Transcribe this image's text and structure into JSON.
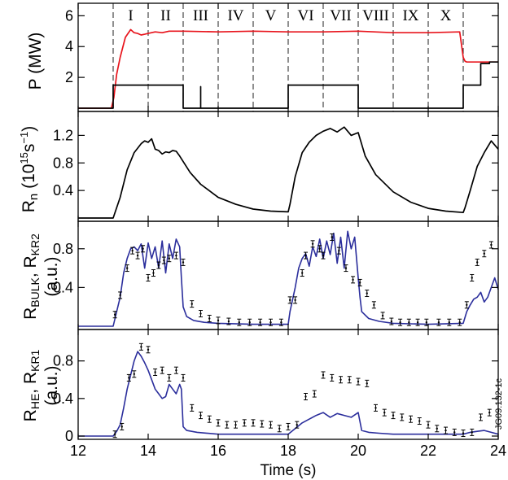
{
  "figure_code": "JG09.132-1c",
  "colors": {
    "red": "#e8141c",
    "blue": "#2b2e9c",
    "black": "#000000",
    "dashed": "#333333"
  },
  "chart_data": [
    {
      "type": "line",
      "ylabel": "P (MW)",
      "xlim": [
        12,
        24
      ],
      "ylim": [
        0,
        6.6
      ],
      "yticks": [
        "6",
        "4",
        "2"
      ],
      "ytick_values": [
        6,
        4,
        2
      ],
      "phase_boundaries": [
        13,
        14,
        15,
        16,
        17,
        18,
        19,
        20,
        21,
        22,
        23
      ],
      "phases": [
        "I",
        "II",
        "III",
        "IV",
        "V",
        "VI",
        "VII",
        "VIII",
        "IX",
        "X"
      ],
      "series": [
        {
          "color": "red",
          "x": [
            12,
            12.95,
            13.02,
            13.1,
            13.2,
            13.35,
            13.5,
            13.6,
            13.7,
            13.8,
            13.9,
            14.0,
            14.2,
            14.4,
            14.6,
            15,
            16,
            17,
            18,
            19,
            20,
            21,
            22,
            22.9,
            23.0,
            23.05,
            23.1,
            23.2,
            24
          ],
          "y": [
            0,
            0,
            0.7,
            2.2,
            3.3,
            4.6,
            5.1,
            4.9,
            4.85,
            4.75,
            4.8,
            4.85,
            4.95,
            4.9,
            5.0,
            5.0,
            4.95,
            5.0,
            4.95,
            4.95,
            5.0,
            4.9,
            4.9,
            4.95,
            3.3,
            3.05,
            3.0,
            3.0,
            3.0
          ]
        },
        {
          "color": "black",
          "x": [
            12,
            13,
            13,
            15,
            15,
            15.5,
            15.5,
            15.5,
            18,
            18,
            20,
            20,
            23,
            23,
            23.5,
            23.5,
            23.75,
            23.75,
            24
          ],
          "y": [
            0,
            0,
            1.5,
            1.5,
            0,
            0,
            1.4,
            0,
            0,
            1.5,
            1.5,
            0,
            0,
            1.5,
            1.5,
            2.9,
            2.9,
            3.0,
            3.0
          ]
        }
      ]
    },
    {
      "type": "line",
      "ylabel": "Rn (10^15 s^-1)",
      "xlim": [
        12,
        24
      ],
      "ylim": [
        0,
        1.5
      ],
      "yticks": [
        "1.2",
        "0.8",
        "0.4"
      ],
      "ytick_values": [
        1.2,
        0.8,
        0.4
      ],
      "series": [
        {
          "color": "black",
          "x": [
            12,
            13,
            13.2,
            13.4,
            13.6,
            13.8,
            13.9,
            14.0,
            14.1,
            14.2,
            14.3,
            14.4,
            14.5,
            14.6,
            14.7,
            14.8,
            14.9,
            15.0,
            15.2,
            15.5,
            16,
            16.5,
            17,
            17.5,
            18,
            18.05,
            18.2,
            18.4,
            18.6,
            18.8,
            19.0,
            19.2,
            19.4,
            19.6,
            19.8,
            20.0,
            20.2,
            20.5,
            21,
            21.5,
            22,
            22.5,
            23,
            23.05,
            23.2,
            23.4,
            23.6,
            23.8,
            24
          ],
          "y": [
            0,
            0,
            0.3,
            0.7,
            0.95,
            1.08,
            1.12,
            1.1,
            1.15,
            1.0,
            0.98,
            0.93,
            0.96,
            0.95,
            0.98,
            0.97,
            0.9,
            0.82,
            0.66,
            0.49,
            0.3,
            0.2,
            0.13,
            0.1,
            0.09,
            0.2,
            0.6,
            0.95,
            1.1,
            1.2,
            1.26,
            1.3,
            1.25,
            1.32,
            1.2,
            1.24,
            0.9,
            0.63,
            0.38,
            0.23,
            0.14,
            0.1,
            0.08,
            0.15,
            0.4,
            0.75,
            0.95,
            1.12,
            1.0
          ]
        }
      ]
    },
    {
      "type": "line",
      "ylabel": "R_BULK, R_KR2 (a.u.)",
      "xlim": [
        12,
        24
      ],
      "ylim": [
        0,
        1.05
      ],
      "yticks": [
        "0.8",
        "0.4"
      ],
      "ytick_values": [
        0.8,
        0.4
      ],
      "series": [
        {
          "color": "blue",
          "x": [
            12,
            13,
            13.1,
            13.2,
            13.3,
            13.4,
            13.5,
            13.6,
            13.7,
            13.8,
            13.9,
            14.0,
            14.1,
            14.2,
            14.3,
            14.4,
            14.5,
            14.6,
            14.7,
            14.8,
            14.9,
            14.95,
            15.0,
            15.1,
            15.3,
            15.6,
            16,
            17,
            18,
            18.05,
            18.2,
            18.3,
            18.4,
            18.5,
            18.6,
            18.7,
            18.8,
            18.9,
            19.0,
            19.1,
            19.2,
            19.3,
            19.4,
            19.5,
            19.6,
            19.7,
            19.8,
            19.9,
            20.0,
            20.05,
            20.1,
            20.3,
            20.6,
            21,
            22,
            23,
            23.1,
            23.2,
            23.3,
            23.4,
            23.5,
            23.6,
            23.7,
            23.8,
            23.9,
            24
          ],
          "y": [
            0,
            0,
            0.15,
            0.3,
            0.55,
            0.7,
            0.8,
            0.82,
            0.78,
            0.85,
            0.6,
            0.86,
            0.7,
            0.82,
            0.6,
            0.88,
            0.55,
            0.85,
            0.7,
            0.9,
            0.82,
            0.5,
            0.2,
            0.1,
            0.06,
            0.04,
            0.03,
            0.02,
            0.02,
            0.15,
            0.4,
            0.6,
            0.7,
            0.75,
            0.62,
            0.82,
            0.72,
            0.9,
            0.7,
            0.88,
            0.74,
            0.96,
            0.65,
            0.92,
            0.6,
            0.98,
            0.8,
            0.92,
            0.5,
            0.3,
            0.15,
            0.08,
            0.05,
            0.03,
            0.02,
            0.03,
            0.15,
            0.22,
            0.28,
            0.3,
            0.35,
            0.25,
            0.3,
            0.4,
            0.5,
            0.38
          ]
        },
        {
          "color": "black",
          "style": "errorbar",
          "x": [
            13.05,
            13.2,
            13.4,
            13.55,
            13.7,
            13.85,
            14.0,
            14.15,
            14.3,
            14.45,
            14.6,
            14.8,
            15.0,
            15.25,
            15.5,
            15.75,
            16.0,
            16.3,
            16.6,
            16.9,
            17.2,
            17.5,
            17.8,
            18.05,
            18.2,
            18.4,
            18.5,
            18.7,
            18.9,
            19.0,
            19.25,
            19.45,
            19.65,
            19.85,
            20.05,
            20.25,
            20.45,
            20.7,
            20.95,
            21.2,
            21.45,
            21.7,
            21.95,
            22.3,
            22.6,
            22.9,
            23.1,
            23.25,
            23.4,
            23.6,
            23.8
          ],
          "y": [
            0.12,
            0.32,
            0.6,
            0.78,
            0.73,
            0.8,
            0.5,
            0.55,
            0.63,
            0.68,
            0.7,
            0.73,
            0.66,
            0.23,
            0.13,
            0.08,
            0.06,
            0.05,
            0.04,
            0.04,
            0.04,
            0.04,
            0.04,
            0.27,
            0.27,
            0.55,
            0.73,
            0.85,
            0.8,
            0.73,
            0.92,
            0.78,
            0.6,
            0.48,
            0.45,
            0.34,
            0.22,
            0.11,
            0.05,
            0.04,
            0.04,
            0.04,
            0.04,
            0.04,
            0.04,
            0.04,
            0.22,
            0.5,
            0.66,
            0.75,
            0.84
          ]
        }
      ]
    },
    {
      "type": "line",
      "ylabel": "R_HE, R_KR1 (a.u.)",
      "xlim": [
        12,
        24
      ],
      "ylim": [
        0,
        1.1
      ],
      "yticks": [
        "0.8",
        "0.4",
        "0"
      ],
      "ytick_values": [
        0.8,
        0.4,
        0
      ],
      "xticks": [
        "12",
        "14",
        "16",
        "18",
        "20",
        "22",
        "24"
      ],
      "xtick_values": [
        12,
        14,
        16,
        18,
        20,
        22,
        24
      ],
      "xlabel": "Time (s)",
      "series": [
        {
          "color": "blue",
          "x": [
            12,
            13,
            13.1,
            13.2,
            13.3,
            13.4,
            13.5,
            13.6,
            13.7,
            13.8,
            13.9,
            14.0,
            14.1,
            14.2,
            14.3,
            14.4,
            14.5,
            14.6,
            14.7,
            14.8,
            14.9,
            14.95,
            15.0,
            15.1,
            15.4,
            16,
            17,
            18,
            18.2,
            18.4,
            18.6,
            18.8,
            19.0,
            19.2,
            19.4,
            19.6,
            19.8,
            20.0,
            20.1,
            20.3,
            20.6,
            21,
            22,
            23,
            23.2,
            23.4,
            23.6,
            23.8,
            24
          ],
          "y": [
            0,
            0,
            0.05,
            0.12,
            0.3,
            0.5,
            0.65,
            0.8,
            0.9,
            0.85,
            0.78,
            0.7,
            0.6,
            0.5,
            0.45,
            0.4,
            0.42,
            0.55,
            0.5,
            0.45,
            0.55,
            0.5,
            0.1,
            0.06,
            0.04,
            0.02,
            0.02,
            0.02,
            0.08,
            0.14,
            0.18,
            0.22,
            0.25,
            0.2,
            0.24,
            0.22,
            0.2,
            0.25,
            0.06,
            0.04,
            0.03,
            0.02,
            0.02,
            0.02,
            0.04,
            0.05,
            0.06,
            0.04,
            0.02
          ]
        },
        {
          "color": "black",
          "style": "errorbar",
          "x": [
            13.05,
            13.25,
            13.45,
            13.6,
            13.8,
            14.0,
            14.2,
            14.4,
            14.6,
            14.8,
            15.0,
            15.25,
            15.5,
            15.75,
            16.0,
            16.25,
            16.5,
            16.75,
            17.0,
            17.25,
            17.5,
            17.75,
            18.0,
            18.25,
            18.5,
            18.75,
            19.0,
            19.25,
            19.5,
            19.75,
            20.0,
            20.25,
            20.5,
            20.75,
            21.0,
            21.25,
            21.5,
            21.75,
            22.0,
            22.25,
            22.5,
            22.75,
            23.0,
            23.25,
            23.5,
            23.75
          ],
          "y": [
            0.02,
            0.1,
            0.62,
            0.66,
            0.95,
            0.92,
            0.68,
            0.7,
            0.62,
            0.7,
            0.62,
            0.3,
            0.22,
            0.18,
            0.14,
            0.12,
            0.12,
            0.14,
            0.14,
            0.13,
            0.12,
            0.08,
            0.1,
            0.12,
            0.42,
            0.45,
            0.65,
            0.62,
            0.6,
            0.6,
            0.58,
            0.56,
            0.3,
            0.25,
            0.22,
            0.2,
            0.18,
            0.16,
            0.12,
            0.08,
            0.06,
            0.04,
            0.03,
            0.04,
            0.2,
            0.25
          ]
        }
      ]
    }
  ]
}
